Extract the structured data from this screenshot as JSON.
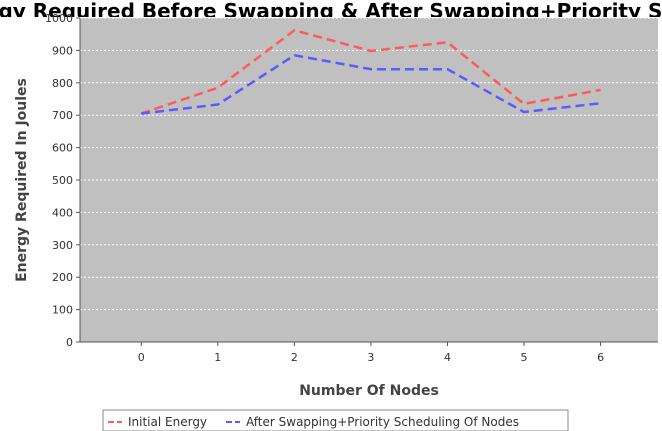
{
  "chart_data": {
    "type": "line",
    "title": "Energy Required Before Swapping & After Swapping+Priority Scheduling",
    "xlabel": "Number Of Nodes",
    "ylabel": "Energy Required In Joules",
    "x": [
      0,
      1,
      2,
      3,
      4,
      5,
      6
    ],
    "x_tick_labels": [
      "0",
      "1",
      "2",
      "3",
      "4",
      "5",
      "6"
    ],
    "y_tick_labels": [
      "0",
      "100",
      "200",
      "300",
      "400",
      "500",
      "600",
      "700",
      "800",
      "900",
      "1000"
    ],
    "xlim": [
      -0.8,
      6.75
    ],
    "ylim": [
      0,
      1000
    ],
    "grid": true,
    "legend_position": "bottom",
    "plot_background": "#c0c0c0",
    "series": [
      {
        "name": "Initial Energy",
        "color": "#ff5a5a",
        "dash": "dashed",
        "values": [
          705,
          785,
          962,
          898,
          925,
          735,
          778
        ]
      },
      {
        "name": "After Swapping+Priority Scheduling Of Nodes",
        "color": "#5a5aff",
        "dash": "dashed",
        "values": [
          705,
          733,
          885,
          842,
          842,
          710,
          737
        ]
      }
    ]
  }
}
